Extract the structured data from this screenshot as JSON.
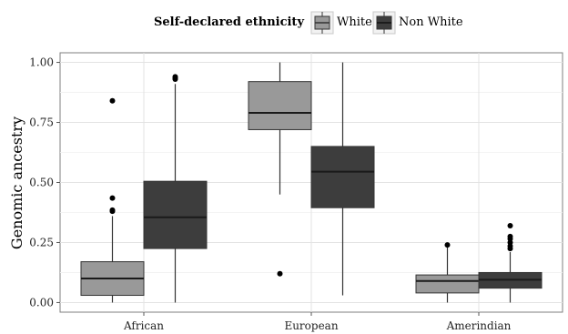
{
  "chart_data": {
    "type": "boxplot",
    "title": "",
    "xlabel": "",
    "ylabel": "Genomic ancestry",
    "ylim": [
      -0.04,
      1.04
    ],
    "yticks": [
      0.0,
      0.25,
      0.5,
      0.75,
      1.0
    ],
    "ytick_labels": [
      "0.00",
      "0.25",
      "0.50",
      "0.75",
      "1.00"
    ],
    "grid": true,
    "legend_position": "top",
    "legend_title": "Self-declared ethnicity",
    "categories": [
      "African",
      "European",
      "Amerindian"
    ],
    "series": [
      {
        "name": "White",
        "color": "#999999",
        "boxes": [
          {
            "q1": 0.03,
            "median": 0.1,
            "q3": 0.17,
            "whisker_low": 0.0,
            "whisker_high": 0.36,
            "outliers": [
              0.38,
              0.385,
              0.435,
              0.84
            ]
          },
          {
            "q1": 0.72,
            "median": 0.79,
            "q3": 0.92,
            "whisker_low": 0.45,
            "whisker_high": 1.0,
            "outliers": [
              0.12
            ]
          },
          {
            "q1": 0.04,
            "median": 0.09,
            "q3": 0.115,
            "whisker_low": 0.0,
            "whisker_high": 0.24,
            "outliers": [
              0.24
            ]
          }
        ]
      },
      {
        "name": "Non White",
        "color": "#3d3d3d",
        "boxes": [
          {
            "q1": 0.225,
            "median": 0.355,
            "q3": 0.505,
            "whisker_low": 0.0,
            "whisker_high": 0.91,
            "outliers": [
              0.93,
              0.935,
              0.94
            ]
          },
          {
            "q1": 0.395,
            "median": 0.545,
            "q3": 0.65,
            "whisker_low": 0.03,
            "whisker_high": 1.0,
            "outliers": []
          },
          {
            "q1": 0.06,
            "median": 0.095,
            "q3": 0.125,
            "whisker_low": 0.0,
            "whisker_high": 0.21,
            "outliers": [
              0.225,
              0.235,
              0.25,
              0.265,
              0.275,
              0.32
            ]
          }
        ]
      }
    ]
  }
}
